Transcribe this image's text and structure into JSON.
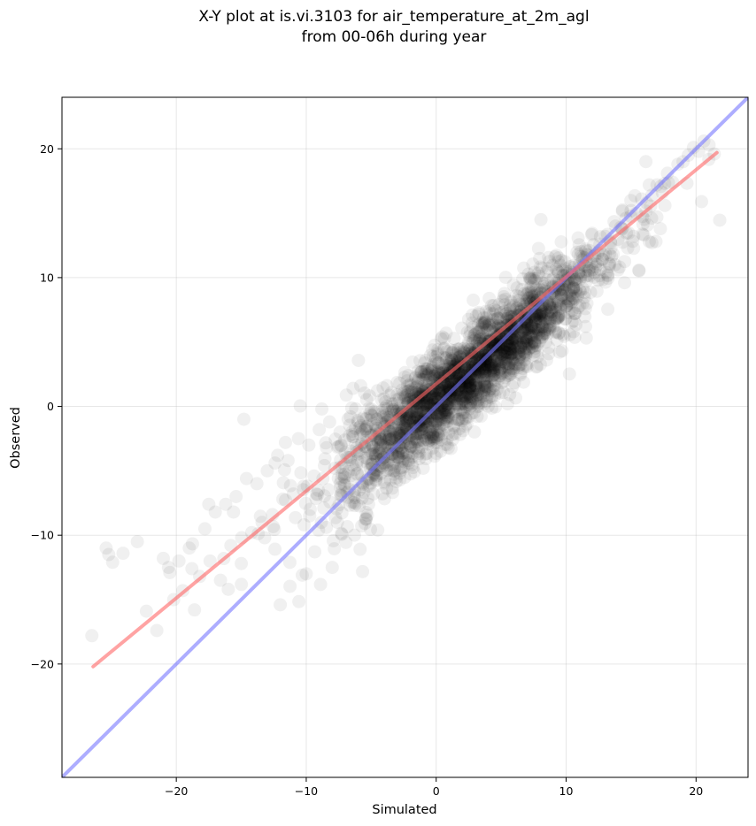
{
  "chart_data": {
    "type": "scatter",
    "title_lines": [
      "X-Y plot at is.vi.3103 for air_temperature_at_2m_agl",
      "from 00-06h during year"
    ],
    "xlabel": "Simulated",
    "ylabel": "Observed",
    "xlim": [
      -28.8,
      24
    ],
    "ylim": [
      -28.8,
      24
    ],
    "xticks": [
      -20,
      -10,
      0,
      10,
      20
    ],
    "yticks": [
      -20,
      -10,
      0,
      10,
      20
    ],
    "xtick_labels": [
      "−20",
      "−10",
      "0",
      "10",
      "20"
    ],
    "ytick_labels": [
      "−20",
      "−10",
      "0",
      "10",
      "20"
    ],
    "grid": true,
    "point_color": "#000000",
    "point_alpha": 0.06,
    "scatter_points": {
      "x": [
        -26.5,
        -25.2,
        -24.9,
        -25.4,
        -24.1,
        -23.0,
        -22.3,
        -21.5,
        -21.0,
        -20.6,
        -20.2,
        -19.8,
        -19.5,
        -19.0,
        -18.6,
        -18.2,
        -17.8,
        -17.4,
        -17.0,
        -16.6,
        -16.2,
        -15.8,
        -15.4,
        -15.0,
        -14.6,
        -14.2,
        -13.8,
        -13.4,
        -13.0,
        -12.6,
        -12.2,
        -11.8,
        -11.4,
        -11.0,
        -10.6,
        -10.2,
        -9.8,
        -9.4,
        -9.0,
        -8.6,
        -8.2,
        -7.8,
        -7.4,
        -7.0,
        -6.6,
        -6.2,
        -5.8,
        -5.4,
        -5.0,
        -4.6,
        -4.2,
        -3.8,
        -3.4,
        -3.0,
        -2.6,
        -2.2,
        -1.8,
        -1.4,
        -1.0,
        -0.6,
        -0.2,
        0.2,
        0.6,
        1.0,
        1.4,
        1.8,
        2.2,
        2.6,
        3.0,
        3.4,
        3.8,
        4.2,
        4.6,
        5.0,
        5.4,
        5.8,
        6.2,
        6.6,
        7.0,
        7.4,
        7.8,
        8.2,
        8.6,
        9.0,
        9.4,
        9.8,
        10.2,
        10.6,
        11.0,
        11.4,
        11.8,
        12.2,
        12.6,
        13.0,
        13.4,
        13.8,
        14.2,
        14.6,
        15.0,
        15.4,
        15.8,
        16.2,
        16.6,
        17.0,
        17.4,
        17.8,
        18.2,
        18.6,
        19.0,
        19.4,
        19.8,
        20.2,
        20.6,
        21.0,
        21.4,
        -17.5,
        -16.0,
        -14.8,
        -13.2,
        -11.6,
        -10.0,
        -8.8,
        -7.6,
        -6.4,
        -5.2,
        -4.0,
        -2.8,
        -1.6,
        -0.4,
        0.8,
        2.0,
        3.2,
        4.4,
        5.6,
        6.8,
        8.0,
        9.2,
        10.4,
        11.6,
        12.8,
        14.0,
        15.2,
        16.4,
        17.6,
        -18.8,
        -15.6,
        -12.4,
        -9.2,
        -6.0,
        -2.8,
        0.4,
        3.6,
        6.8,
        10.0,
        13.2,
        16.4,
        -20.5,
        -12.0,
        -8.0,
        -4.5,
        -1.0,
        2.5,
        5.5,
        8.5,
        11.5,
        14.5
      ],
      "y": [
        -17.8,
        -11.5,
        -12.1,
        -11.0,
        -11.4,
        -10.5,
        -15.9,
        -17.4,
        -11.8,
        -12.5,
        -15.0,
        -12.0,
        -14.3,
        -11.0,
        -15.8,
        -13.2,
        -9.5,
        -12.0,
        -8.2,
        -13.5,
        -7.6,
        -10.8,
        -7.0,
        -12.2,
        -5.6,
        -9.8,
        -6.0,
        -9.0,
        -5.0,
        -8.4,
        -3.8,
        -7.2,
        -4.2,
        -6.8,
        -2.5,
        -6.2,
        -3.0,
        -5.4,
        -1.8,
        -4.6,
        -1.2,
        -4.8,
        -2.0,
        -3.6,
        -0.8,
        -3.0,
        -1.5,
        -2.8,
        -0.2,
        -1.9,
        0.5,
        -1.2,
        0.2,
        0.9,
        -0.4,
        1.6,
        0.6,
        2.0,
        0.8,
        2.4,
        1.4,
        2.9,
        1.8,
        3.5,
        2.8,
        3.9,
        3.0,
        4.4,
        3.8,
        4.9,
        4.6,
        5.4,
        4.8,
        6.1,
        5.6,
        6.4,
        6.3,
        7.2,
        6.8,
        7.6,
        7.9,
        8.1,
        8.9,
        8.8,
        9.4,
        10.2,
        9.6,
        10.8,
        11.0,
        10.9,
        12.1,
        11.7,
        12.6,
        13.2,
        12.8,
        14.0,
        13.9,
        14.6,
        15.2,
        15.0,
        16.1,
        15.8,
        16.4,
        17.2,
        16.6,
        18.1,
        17.4,
        18.8,
        19.0,
        19.5,
        20.1,
        19.8,
        20.6,
        20.3,
        19.6,
        -7.6,
        -14.2,
        -1.0,
        -10.2,
        -2.8,
        -13.0,
        -0.2,
        -9.0,
        1.4,
        -7.6,
        0.6,
        -5.2,
        2.2,
        -2.4,
        3.8,
        -0.6,
        4.6,
        1.2,
        6.4,
        3.6,
        7.2,
        5.8,
        9.0,
        8.0,
        11.4,
        10.6,
        13.2,
        12.8,
        15.6,
        -12.6,
        -8.2,
        -4.4,
        -6.8,
        -1.2,
        1.8,
        -2.6,
        6.4,
        4.2,
        7.8,
        10.2,
        17.2,
        -12.9,
        -15.4,
        -12.5,
        -9.6,
        -4.8,
        -0.8,
        0.2,
        3.6,
        6.2,
        9.6
      ]
    },
    "lines": [
      {
        "kind": "one-to-one",
        "color": "#7777ff",
        "alpha": 0.6,
        "x": [
          -28.8,
          24
        ],
        "y": [
          -28.8,
          24
        ]
      },
      {
        "kind": "regression",
        "color": "#ff6666",
        "alpha": 0.6,
        "x": [
          -26.4,
          21.6
        ],
        "y": [
          -20.2,
          19.7
        ]
      }
    ]
  }
}
